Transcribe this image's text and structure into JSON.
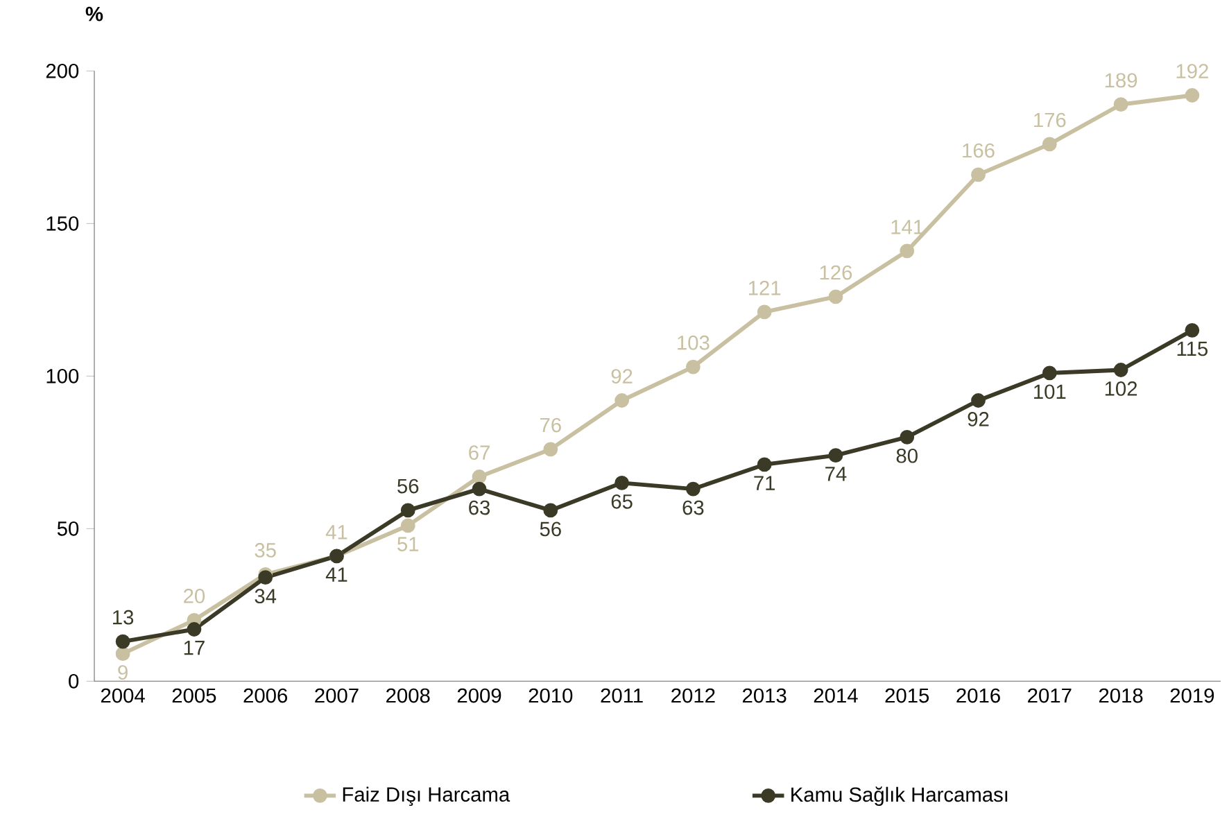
{
  "chart_data": {
    "type": "line",
    "ylabel": "%",
    "categories": [
      "2004",
      "2005",
      "2006",
      "2007",
      "2008",
      "2009",
      "2010",
      "2011",
      "2012",
      "2013",
      "2014",
      "2015",
      "2016",
      "2017",
      "2018",
      "2019"
    ],
    "series": [
      {
        "name": "Faiz Dışı Harcama",
        "color": "#c8c0a0",
        "values": [
          9,
          20,
          35,
          41,
          51,
          67,
          76,
          92,
          103,
          121,
          126,
          141,
          166,
          176,
          189,
          192
        ]
      },
      {
        "name": "Kamu Sağlık Harcaması",
        "color": "#3a3a26",
        "values": [
          13,
          17,
          34,
          41,
          56,
          63,
          56,
          65,
          63,
          71,
          74,
          80,
          92,
          101,
          102,
          115
        ]
      }
    ],
    "ylim": [
      0,
      200
    ],
    "yticks": [
      0,
      50,
      100,
      150,
      200
    ],
    "data_labels": true,
    "legend": "bottom",
    "marker": "circle",
    "line_style": "solid",
    "grid": false
  }
}
